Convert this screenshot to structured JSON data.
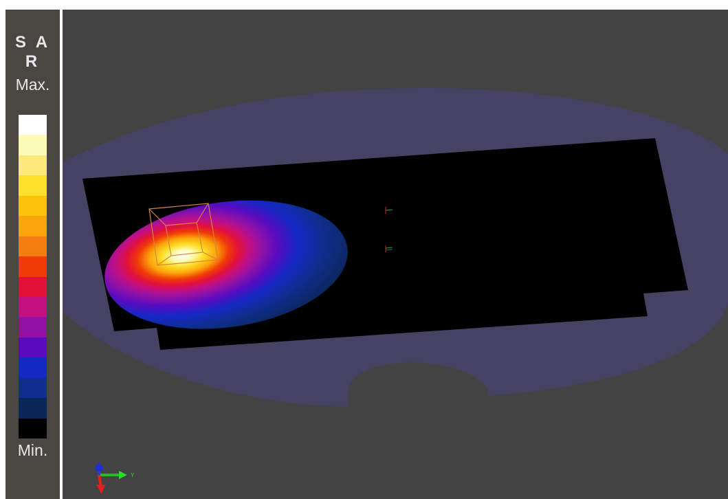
{
  "legend": {
    "title": "S A R",
    "max_label": "Max.",
    "min_label": "Min.",
    "colors": [
      "#ffffff",
      "#fdfbb8",
      "#fde97a",
      "#fde02a",
      "#fdc30a",
      "#fca50a",
      "#f57d0f",
      "#f03b07",
      "#e2113a",
      "#c40f80",
      "#9212a6",
      "#5a0bbf",
      "#1428c4",
      "#0f2e8f",
      "#0b2659",
      "#000000"
    ]
  },
  "viewport": {
    "background": "#434343",
    "axis": {
      "y_label": "Y"
    }
  }
}
